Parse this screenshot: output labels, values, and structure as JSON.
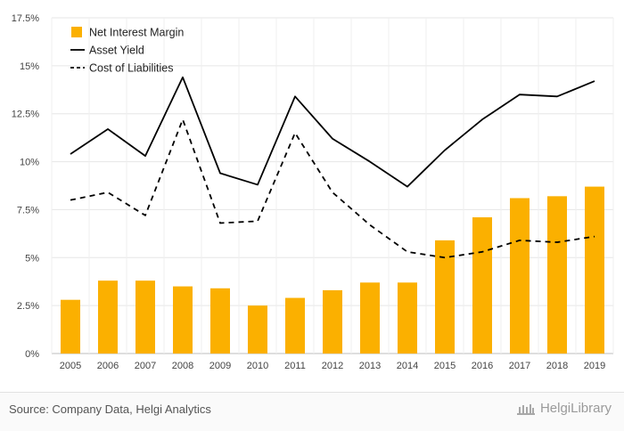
{
  "chart_data": {
    "type": "bar",
    "categories": [
      "2005",
      "2006",
      "2007",
      "2008",
      "2009",
      "2010",
      "2011",
      "2012",
      "2013",
      "2014",
      "2015",
      "2016",
      "2017",
      "2018",
      "2019"
    ],
    "series": [
      {
        "name": "Net Interest Margin",
        "kind": "bar",
        "color": "#FBB000",
        "values": [
          2.8,
          3.8,
          3.8,
          3.5,
          3.4,
          2.5,
          2.9,
          3.3,
          3.7,
          3.7,
          5.9,
          7.1,
          8.1,
          8.2,
          8.7
        ]
      },
      {
        "name": "Asset Yield",
        "kind": "line",
        "style": "solid",
        "color": "#000000",
        "values": [
          10.4,
          11.7,
          10.3,
          14.4,
          9.4,
          8.8,
          13.4,
          11.2,
          10.0,
          8.7,
          10.6,
          12.2,
          13.5,
          13.4,
          14.2
        ]
      },
      {
        "name": "Cost of Liabilities",
        "kind": "line",
        "style": "dashed",
        "color": "#000000",
        "values": [
          8.0,
          8.4,
          7.2,
          12.2,
          6.8,
          6.9,
          11.5,
          8.4,
          6.7,
          5.3,
          5.0,
          5.3,
          5.9,
          5.8,
          6.1
        ]
      }
    ],
    "ylim": [
      0,
      17.5
    ],
    "yticks": [
      "0%",
      "2.5%",
      "5%",
      "7.5%",
      "10%",
      "12.5%",
      "15%",
      "17.5%"
    ],
    "grid": true,
    "legend": "top-left"
  },
  "footer": {
    "source": "Source: Company Data, Helgi Analytics",
    "brand": "HelgiLibrary",
    "brand_icon": "library-building-icon"
  }
}
